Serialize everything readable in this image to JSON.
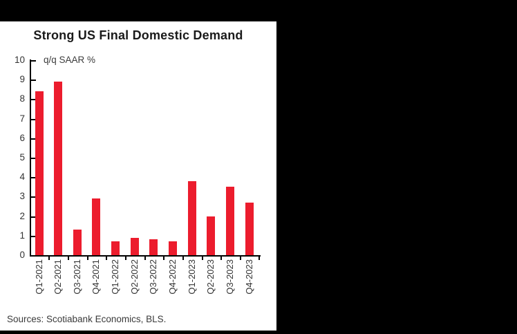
{
  "chart_data": {
    "type": "bar",
    "title": "Strong US Final Domestic Demand",
    "ylabel": "q/q SAAR %",
    "xlabel": "",
    "categories": [
      "Q1-2021",
      "Q2-2021",
      "Q3-2021",
      "Q4-2021",
      "Q1-2022",
      "Q2-2022",
      "Q3-2022",
      "Q4-2022",
      "Q1-2023",
      "Q2-2023",
      "Q3-2023",
      "Q4-2023"
    ],
    "values": [
      8.4,
      8.9,
      1.3,
      2.9,
      0.7,
      0.9,
      0.8,
      0.7,
      3.8,
      2.0,
      3.5,
      2.7
    ],
    "ylim": [
      0,
      10
    ],
    "ytick_step": 1,
    "yticks": [
      0,
      1,
      2,
      3,
      4,
      5,
      6,
      7,
      8,
      9,
      10
    ],
    "bar_color": "#ec1c2d",
    "axis_color": "#000000",
    "grid": false,
    "legend_position": "none",
    "x_label_rotation": -90
  },
  "footer": {
    "sources": "Sources: Scotiabank Economics, BLS."
  },
  "colors": {
    "page_background": "#000000",
    "panel_background": "#ffffff",
    "title_text": "#1a1a1a",
    "tick_text": "#333333"
  }
}
